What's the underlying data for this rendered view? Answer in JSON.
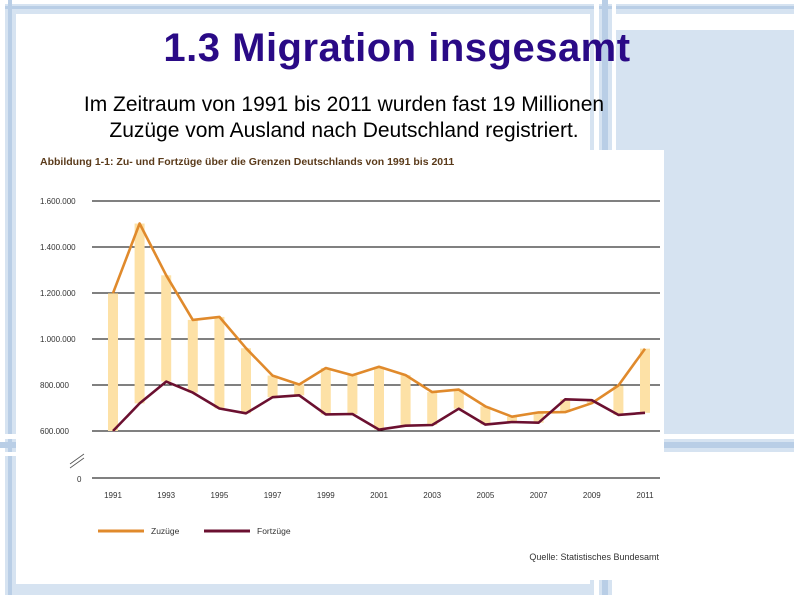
{
  "slide": {
    "title": "1.3 Migration insgesamt",
    "subtitle_line1": "Im Zeitraum von 1991 bis 2011 wurden fast 19 Millionen",
    "subtitle_line2": "Zuzüge vom Ausland nach Deutschland registriert."
  },
  "chart_data": {
    "type": "line",
    "title": "Abbildung 1-1:  Zu- und Fortzüge über die Grenzen Deutschlands von 1991 bis 2011",
    "source": "Quelle: Statistisches Bundesamt",
    "x": [
      1991,
      1992,
      1993,
      1994,
      1995,
      1996,
      1997,
      1998,
      1999,
      2000,
      2001,
      2002,
      2003,
      2004,
      2005,
      2006,
      2007,
      2008,
      2009,
      2010,
      2011
    ],
    "x_tick_labels": [
      "1991",
      "1993",
      "1995",
      "1997",
      "1999",
      "2001",
      "2003",
      "2005",
      "2007",
      "2009",
      "2011"
    ],
    "y_tick_values": [
      600000,
      800000,
      1000000,
      1200000,
      1400000,
      1600000
    ],
    "y_tick_labels": [
      "600.000",
      "800.000",
      "1.000.000",
      "1.200.000",
      "1.400.000",
      "1.600.000"
    ],
    "y_zero_label": "0",
    "ylim": [
      600000,
      1600000
    ],
    "series": [
      {
        "name": "Zuzüge",
        "color": "#e08a2c",
        "values": [
          1199000,
          1502000,
          1277000,
          1083000,
          1096000,
          960000,
          841000,
          802000,
          874000,
          842000,
          879000,
          843000,
          769000,
          780000,
          707000,
          662000,
          681000,
          682000,
          721000,
          798000,
          958000
        ]
      },
      {
        "name": "Fortzüge",
        "color": "#6b1030",
        "values": [
          600000,
          720000,
          815000,
          767000,
          698000,
          677000,
          747000,
          755000,
          672000,
          674000,
          606000,
          623000,
          626000,
          697000,
          628000,
          639000,
          636000,
          738000,
          734000,
          670000,
          679000
        ]
      }
    ],
    "fill_color": "#fde1a6"
  }
}
